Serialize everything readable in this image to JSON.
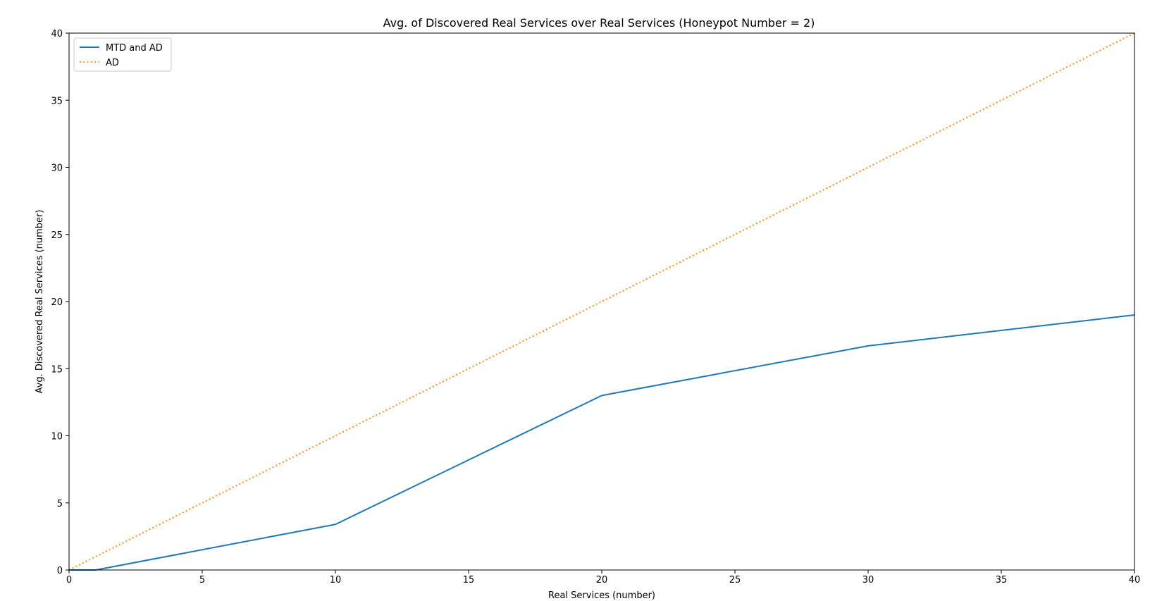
{
  "chart_data": {
    "type": "line",
    "title": "Avg. of Discovered Real Services over Real Services (Honeypot Number = 2)",
    "xlabel": "Real Services (number)",
    "ylabel": "Avg. Discovered Real Services (number)",
    "xlim": [
      0,
      40
    ],
    "ylim": [
      0,
      40
    ],
    "xticks": [
      0,
      5,
      10,
      15,
      20,
      25,
      30,
      35,
      40
    ],
    "yticks": [
      0,
      5,
      10,
      15,
      20,
      25,
      30,
      35,
      40
    ],
    "grid": false,
    "legend_position": "top-left",
    "series": [
      {
        "name": "MTD and AD",
        "color": "#1f77b4",
        "style": "solid",
        "x": [
          0,
          1,
          10,
          20,
          30,
          40
        ],
        "y": [
          0,
          0,
          3.4,
          13.0,
          16.7,
          19.0
        ]
      },
      {
        "name": "AD",
        "color": "#ff7f0e",
        "style": "dotted",
        "x": [
          0,
          1,
          10,
          20,
          30,
          40
        ],
        "y": [
          0,
          1,
          10,
          20,
          30,
          40
        ]
      }
    ]
  }
}
